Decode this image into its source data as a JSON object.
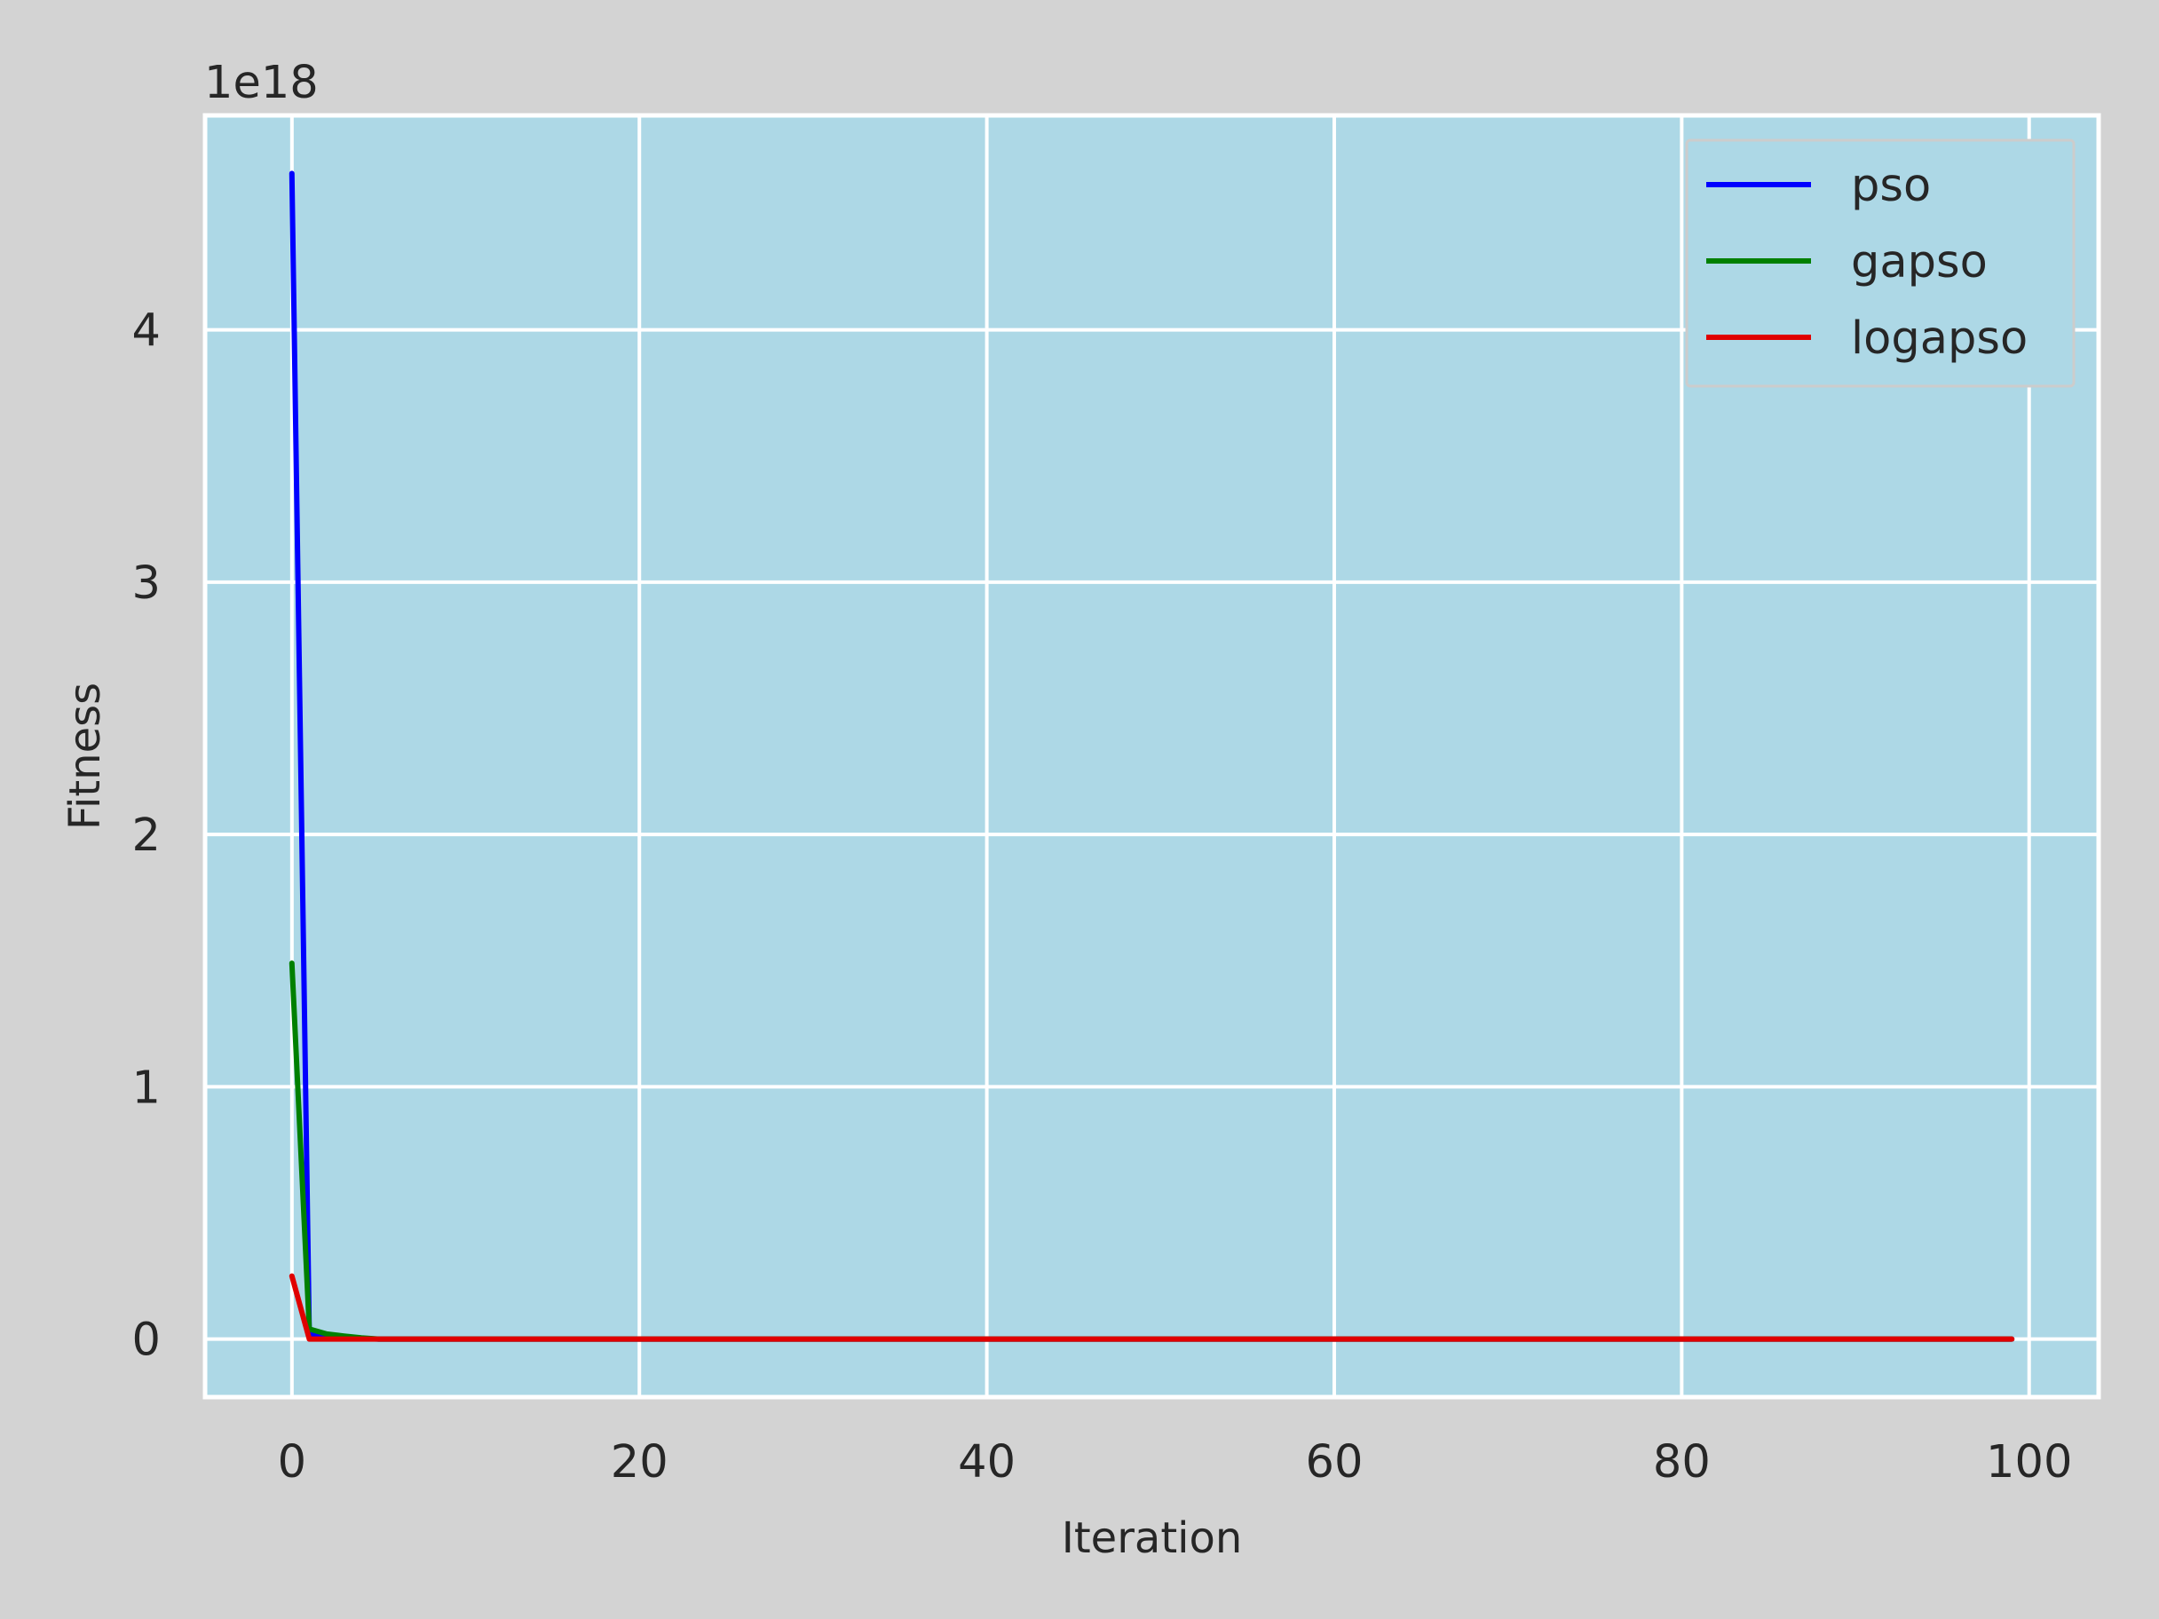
{
  "chart_data": {
    "type": "line",
    "title": "",
    "xlabel": "Iteration",
    "ylabel": "Fitness",
    "y_offset_text": "1e18",
    "y_scale": 1e+18,
    "xlim": [
      -5,
      104
    ],
    "ylim": [
      -0.23,
      4.85
    ],
    "xticks": [
      0,
      20,
      40,
      60,
      80,
      100
    ],
    "yticks": [
      0,
      1,
      2,
      3,
      4
    ],
    "grid": true,
    "legend_position": "top-right",
    "colors": {
      "figure_background": "#d3d3d3",
      "plot_background": "#add8e6",
      "grid": "#ffffff"
    },
    "series": [
      {
        "name": "pso",
        "color": "#0000ff",
        "x": [
          0,
          1,
          2,
          3,
          4,
          5,
          99
        ],
        "y": [
          4.62,
          0.02,
          0.008,
          0.004,
          0.002,
          0.0,
          0.0
        ]
      },
      {
        "name": "gapso",
        "color": "#008000",
        "x": [
          0,
          1,
          2,
          3,
          4,
          5,
          99
        ],
        "y": [
          1.49,
          0.04,
          0.02,
          0.012,
          0.005,
          0.0,
          0.0
        ]
      },
      {
        "name": "logapso",
        "color": "#e00000",
        "x": [
          0,
          1,
          2,
          99
        ],
        "y": [
          0.25,
          0.0,
          0.0,
          0.0
        ]
      }
    ]
  }
}
